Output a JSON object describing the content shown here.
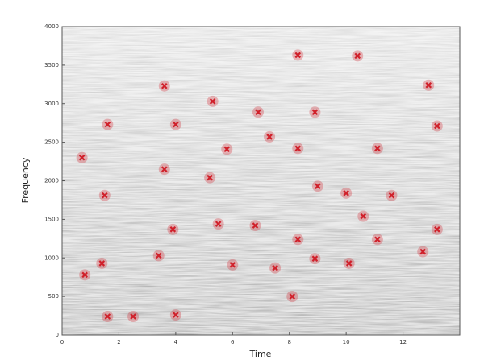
{
  "chart_data": {
    "type": "scatter",
    "x_label": "Time",
    "y_label": "Frequency",
    "xlim": [
      0,
      14
    ],
    "ylim": [
      0,
      4000
    ],
    "xticks": [
      0,
      2,
      4,
      6,
      8,
      10,
      12
    ],
    "yticks": [
      0,
      500,
      1000,
      1500,
      2000,
      2500,
      3000,
      3500,
      4000
    ],
    "color": "#d0202a",
    "x": [
      0.7,
      0.8,
      1.5,
      1.4,
      1.6,
      1.6,
      2.5,
      3.6,
      3.6,
      3.4,
      3.9,
      4.0,
      4.0,
      5.3,
      5.2,
      5.5,
      5.8,
      6.0,
      6.9,
      6.8,
      7.3,
      7.5,
      8.1,
      8.3,
      8.3,
      8.3,
      8.9,
      9.0,
      8.9,
      10.0,
      10.1,
      10.4,
      10.6,
      11.1,
      11.1,
      11.6,
      12.9,
      13.2,
      12.7,
      13.2
    ],
    "values": [
      2300,
      780,
      1810,
      930,
      2730,
      240,
      240,
      3230,
      2150,
      1030,
      1370,
      260,
      2730,
      3030,
      2040,
      1440,
      2410,
      910,
      2890,
      1420,
      2570,
      870,
      500,
      3630,
      2420,
      1240,
      2890,
      1930,
      990,
      1840,
      930,
      3620,
      1540,
      2420,
      1240,
      1810,
      3240,
      2710,
      1080,
      1370
    ]
  }
}
